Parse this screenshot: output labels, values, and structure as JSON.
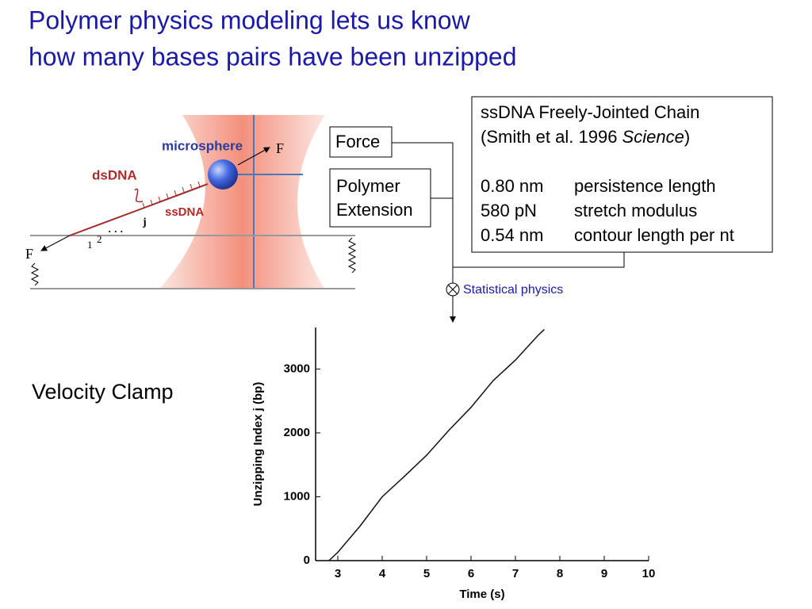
{
  "slide": {
    "title": [
      "Polymer physics modeling lets us know",
      "how many bases pairs have been unzipped"
    ],
    "diagram": {
      "microsphere": "microsphere",
      "dsdna": "dsDNA",
      "ssdna": "ssDNA",
      "force_right": "F",
      "force_left": "F",
      "base_1": "1",
      "base_2": "2",
      "dots": "· · ·",
      "base_j": "j"
    },
    "force_box": "Force",
    "extension_box": [
      "Polymer",
      "Extension"
    ],
    "model_box": {
      "heading": "ssDNA Freely-Jointed Chain",
      "citation": [
        "(Smith et al. 1996 ",
        "Science",
        ")"
      ],
      "rows": [
        [
          "0.80 nm",
          "persistence length"
        ],
        [
          "580 pN",
          "stretch modulus"
        ],
        [
          "0.54 nm",
          "contour length per nt"
        ]
      ]
    },
    "operator_label": "Statistical physics",
    "side_label": "Velocity Clamp"
  },
  "chart_data": {
    "type": "line",
    "x_label": "Time (s)",
    "y_label": "Unzipping Index j (bp)",
    "x": [
      2.8,
      3.0,
      3.5,
      4.0,
      4.5,
      5.0,
      5.5,
      6.0,
      6.5,
      7.0,
      7.5,
      7.65
    ],
    "values": [
      0,
      130,
      540,
      1000,
      1320,
      1650,
      2040,
      2400,
      2820,
      3140,
      3520,
      3620
    ],
    "color": "#111111",
    "xlim": [
      2.5,
      10
    ],
    "xticks": [
      3,
      4,
      5,
      6,
      7,
      8,
      9,
      10
    ],
    "ylim": [
      0,
      3650
    ],
    "yticks": [
      0,
      1000,
      2000,
      3000
    ]
  }
}
